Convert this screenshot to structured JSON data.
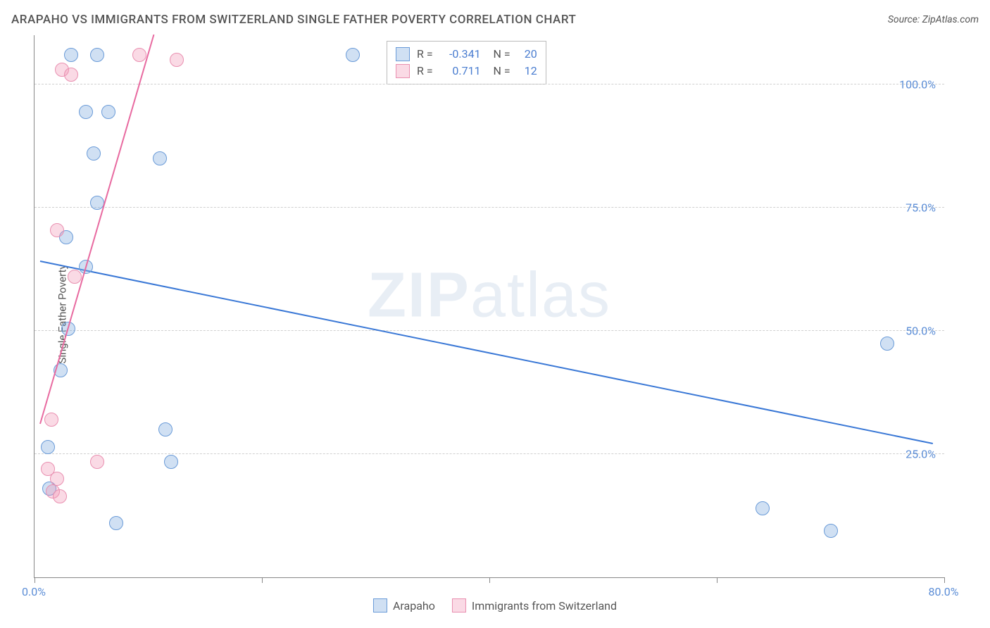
{
  "title": "ARAPAHO VS IMMIGRANTS FROM SWITZERLAND SINGLE FATHER POVERTY CORRELATION CHART",
  "source": "Source: ZipAtlas.com",
  "ylabel": "Single Father Poverty",
  "watermark_a": "ZIP",
  "watermark_b": "atlas",
  "chart": {
    "type": "scatter",
    "xlim": [
      0,
      80
    ],
    "ylim": [
      0,
      110
    ],
    "y_gridlines": [
      25,
      50,
      75,
      100
    ],
    "y_tick_labels": [
      "25.0%",
      "50.0%",
      "75.0%",
      "100.0%"
    ],
    "x_ticks": [
      0,
      20,
      40,
      60,
      80
    ],
    "x_tick_labels": [
      "0.0%",
      "80.0%"
    ],
    "background_color": "#ffffff",
    "grid_color": "#d0d0d0",
    "axis_color": "#888888",
    "label_color": "#5b8dd6",
    "text_color": "#555555",
    "point_radius": 9,
    "series": [
      {
        "name": "Arapaho",
        "fill": "rgba(120,165,220,0.35)",
        "stroke": "#6a9bd8",
        "points": [
          [
            3.2,
            106
          ],
          [
            5.5,
            106
          ],
          [
            28,
            106
          ],
          [
            4.5,
            94.5
          ],
          [
            6.5,
            94.5
          ],
          [
            5.2,
            86
          ],
          [
            11,
            85
          ],
          [
            5.5,
            76
          ],
          [
            2.8,
            69
          ],
          [
            4.5,
            63
          ],
          [
            3.0,
            50.5
          ],
          [
            2.3,
            42
          ],
          [
            11.5,
            30
          ],
          [
            1.2,
            26.5
          ],
          [
            12,
            23.5
          ],
          [
            1.3,
            18
          ],
          [
            7.2,
            11
          ],
          [
            64,
            14
          ],
          [
            70,
            9.5
          ],
          [
            75,
            47.5
          ]
        ],
        "trend": {
          "x1": 0.5,
          "y1": 64,
          "x2": 79,
          "y2": 27,
          "color": "#3a78d6",
          "width": 2
        },
        "r": "-0.341",
        "n": "20"
      },
      {
        "name": "Immigrants from Switzerland",
        "fill": "rgba(240,150,180,0.35)",
        "stroke": "#e98fb0",
        "points": [
          [
            2.4,
            103
          ],
          [
            3.2,
            102
          ],
          [
            9.2,
            106
          ],
          [
            12.5,
            105
          ],
          [
            2.0,
            70.5
          ],
          [
            3.5,
            61
          ],
          [
            1.5,
            32
          ],
          [
            5.5,
            23.5
          ],
          [
            1.2,
            22
          ],
          [
            2.0,
            20
          ],
          [
            1.6,
            17.5
          ],
          [
            2.2,
            16.5
          ]
        ],
        "trend": {
          "x1": 0.5,
          "y1": 31,
          "x2": 10.5,
          "y2": 110,
          "color": "#e86aa0",
          "width": 2
        },
        "r": "0.711",
        "n": "12"
      }
    ]
  },
  "stats_box": {
    "label_r": "R =",
    "label_n": "N ="
  },
  "legend": {
    "items": [
      "Arapaho",
      "Immigrants from Switzerland"
    ]
  }
}
